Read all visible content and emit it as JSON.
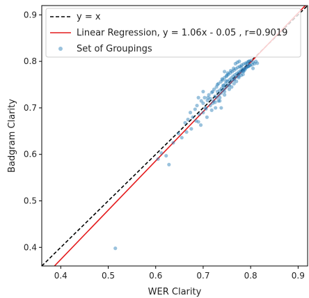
{
  "chart_data": {
    "type": "scatter",
    "title": "",
    "xlabel": "WER Clarity",
    "ylabel": "Badgram Clarity",
    "xlim": [
      0.36,
      0.92
    ],
    "ylim": [
      0.36,
      0.92
    ],
    "xticks": [
      "0.4",
      "0.5",
      "0.6",
      "0.7",
      "0.8",
      "0.9"
    ],
    "yticks": [
      "0.4",
      "0.5",
      "0.6",
      "0.7",
      "0.8",
      "0.9"
    ],
    "grid": false,
    "legend_position": "top-left",
    "legend": [
      {
        "label": "y = x",
        "style": "dashed-line",
        "color": "#000000"
      },
      {
        "label": "Linear Regression, y = 1.06x - 0.05 , r=0.9019",
        "style": "solid-line",
        "color": "#e41a1c"
      },
      {
        "label": "Set of Groupings",
        "style": "marker",
        "color": "#1f77b4"
      }
    ],
    "series": [
      {
        "name": "y = x",
        "type": "line",
        "slope": 1.0,
        "intercept": 0.0
      },
      {
        "name": "Linear Regression, y = 1.06x - 0.05 , r=0.9019",
        "type": "line",
        "slope": 1.06,
        "intercept": -0.05
      },
      {
        "name": "Set of Groupings",
        "type": "scatter",
        "x": [
          0.515,
          0.605,
          0.612,
          0.622,
          0.628,
          0.637,
          0.648,
          0.655,
          0.662,
          0.668,
          0.673,
          0.678,
          0.683,
          0.687,
          0.692,
          0.696,
          0.7,
          0.703,
          0.706,
          0.709,
          0.712,
          0.715,
          0.718,
          0.72,
          0.723,
          0.725,
          0.728,
          0.73,
          0.732,
          0.735,
          0.737,
          0.739,
          0.741,
          0.743,
          0.745,
          0.747,
          0.749,
          0.751,
          0.753,
          0.755,
          0.757,
          0.759,
          0.761,
          0.763,
          0.765,
          0.767,
          0.769,
          0.771,
          0.773,
          0.775,
          0.777,
          0.779,
          0.781,
          0.783,
          0.785,
          0.787,
          0.789,
          0.791,
          0.793,
          0.795,
          0.797,
          0.799,
          0.801,
          0.803,
          0.805,
          0.808,
          0.811,
          0.814,
          0.69,
          0.7,
          0.705,
          0.715,
          0.722,
          0.728,
          0.733,
          0.738,
          0.742,
          0.746,
          0.75,
          0.754,
          0.758,
          0.762,
          0.766,
          0.77,
          0.774,
          0.778,
          0.782,
          0.786,
          0.79,
          0.794,
          0.798,
          0.735,
          0.745,
          0.755,
          0.765,
          0.775,
          0.785,
          0.76,
          0.77,
          0.78,
          0.75,
          0.74,
          0.73,
          0.72,
          0.71,
          0.7,
          0.69,
          0.745,
          0.755,
          0.765,
          0.775,
          0.785,
          0.795,
          0.805,
          0.725,
          0.735,
          0.745,
          0.768,
          0.772,
          0.776,
          0.78,
          0.784,
          0.788,
          0.792,
          0.796,
          0.764,
          0.758,
          0.752,
          0.748,
          0.742,
          0.738,
          0.732,
          0.726,
          0.718,
          0.708,
          0.695,
          0.685,
          0.675,
          0.665
        ],
        "y": [
          0.398,
          0.59,
          0.603,
          0.597,
          0.578,
          0.625,
          0.645,
          0.636,
          0.668,
          0.675,
          0.69,
          0.68,
          0.697,
          0.705,
          0.686,
          0.715,
          0.71,
          0.722,
          0.698,
          0.716,
          0.728,
          0.72,
          0.733,
          0.71,
          0.74,
          0.725,
          0.745,
          0.735,
          0.752,
          0.738,
          0.756,
          0.742,
          0.76,
          0.748,
          0.765,
          0.752,
          0.768,
          0.757,
          0.772,
          0.76,
          0.775,
          0.764,
          0.778,
          0.768,
          0.781,
          0.771,
          0.784,
          0.774,
          0.787,
          0.777,
          0.789,
          0.78,
          0.792,
          0.782,
          0.794,
          0.785,
          0.796,
          0.787,
          0.798,
          0.789,
          0.8,
          0.791,
          0.802,
          0.793,
          0.798,
          0.795,
          0.8,
          0.796,
          0.67,
          0.69,
          0.7,
          0.705,
          0.715,
          0.722,
          0.728,
          0.732,
          0.738,
          0.742,
          0.746,
          0.75,
          0.755,
          0.76,
          0.763,
          0.767,
          0.772,
          0.776,
          0.779,
          0.783,
          0.786,
          0.789,
          0.792,
          0.715,
          0.728,
          0.74,
          0.752,
          0.765,
          0.778,
          0.745,
          0.757,
          0.77,
          0.77,
          0.762,
          0.75,
          0.735,
          0.722,
          0.735,
          0.722,
          0.735,
          0.748,
          0.76,
          0.768,
          0.78,
          0.79,
          0.785,
          0.712,
          0.722,
          0.778,
          0.795,
          0.798,
          0.8,
          0.788,
          0.772,
          0.782,
          0.795,
          0.8,
          0.785,
          0.78,
          0.775,
          0.758,
          0.748,
          0.7,
          0.715,
          0.7,
          0.695,
          0.68,
          0.663,
          0.672,
          0.655,
          0.648
        ]
      }
    ]
  }
}
